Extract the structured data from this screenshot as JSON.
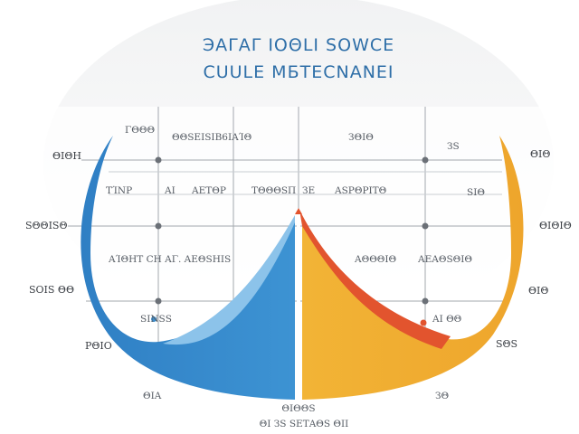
{
  "chart_data": {
    "type": "area",
    "title_line1": "ЭΑΓΑΓ ΙΟΘLΙ ЅΟWCE",
    "title_line2": "CUULE MБTECNANEI",
    "colors": {
      "left": "#3d8fcf",
      "left_light": "#8cc3ea",
      "right": "#f0ae33",
      "accent": "#e2542e",
      "grid": "#9aa0a6",
      "title": "#2f6fa8"
    },
    "grid_labels": [
      {
        "id": "a1",
        "text": "ΓΘΘΘ"
      },
      {
        "id": "a2",
        "text": "ΘΘЅΕΙЅΙΒ6ΙΑΊΘ"
      },
      {
        "id": "a3",
        "text": "ЗΘΙΘ"
      },
      {
        "id": "a4",
        "text": "ЗЅ"
      },
      {
        "id": "b1",
        "text": "ΤΊΝΡ"
      },
      {
        "id": "b2",
        "text": "ΑΙ"
      },
      {
        "id": "b3",
        "text": "ΑΕΤΘΡ"
      },
      {
        "id": "b4",
        "text": "ΤΘΘΘЅΠ"
      },
      {
        "id": "b5",
        "text": "ЗΕ"
      },
      {
        "id": "b6",
        "text": "ΑЅΡΘΡΙΤΘ"
      },
      {
        "id": "b7",
        "text": "ЅΙΘ"
      },
      {
        "id": "c1",
        "text": "ΑΊΘΗΤ CΗ ΑΓ. ΑΕΘЅΗΙЅ"
      },
      {
        "id": "c2",
        "text": "ΑΘΘΘΙΘ"
      },
      {
        "id": "c3",
        "text": "ΑΕΑΘЅΘΙΘ"
      },
      {
        "id": "d1",
        "text": "ЅΙΝЅЅ"
      },
      {
        "id": "d2",
        "text": "ΑΙ ΘΘ"
      },
      {
        "id": "e1",
        "text": "ΘΙΑ"
      },
      {
        "id": "e2",
        "text": "ЗΘ"
      },
      {
        "id": "e3",
        "text": "ΘΙΘΘЅ"
      },
      {
        "id": "e4",
        "text": "ΘΙ ЗЅ ЅΕΤΑΘЅ ΘΙΙ"
      }
    ],
    "side_labels_left": [
      {
        "id": "l1",
        "text": "ΘΙΘΗ"
      },
      {
        "id": "l2",
        "text": "ЅΘΘΙЅΘ"
      },
      {
        "id": "l3",
        "text": "ЅΟΙЅ ΘΘ"
      },
      {
        "id": "l4",
        "text": "ΡΘΙΟ"
      }
    ],
    "side_labels_right": [
      {
        "id": "r1",
        "text": "ΘΙΘ"
      },
      {
        "id": "r2",
        "text": "ΘΙΘΙΘ"
      },
      {
        "id": "r3",
        "text": "ΘΙΘ"
      },
      {
        "id": "r4",
        "text": "ЅΘЅ"
      }
    ]
  }
}
